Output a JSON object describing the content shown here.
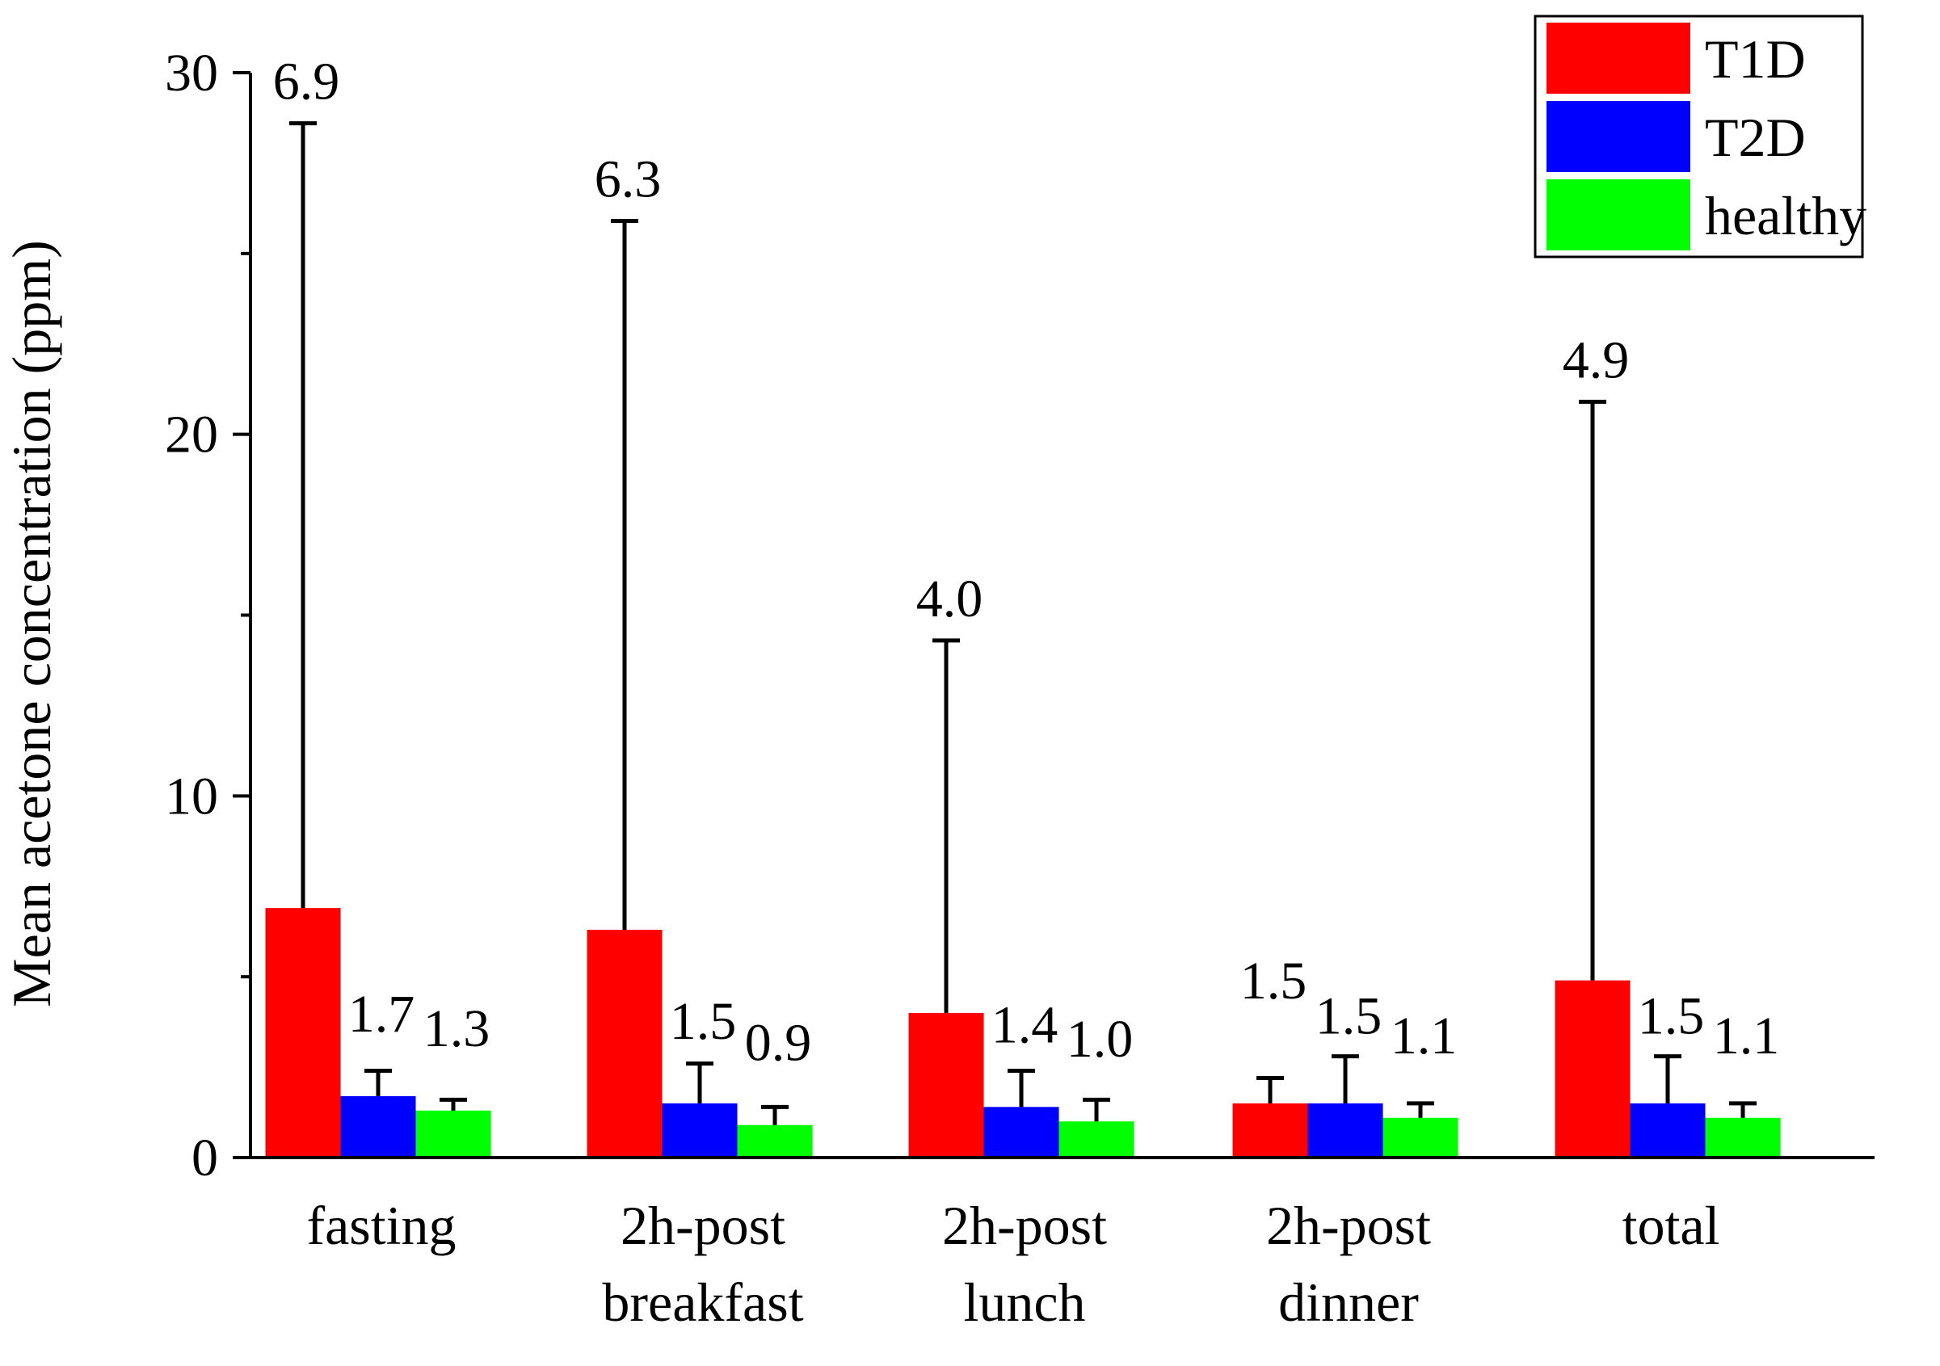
{
  "chart_data": {
    "type": "bar",
    "title": "",
    "xlabel": "",
    "ylabel": "Mean acetone concentration (ppm)",
    "ylim": [
      0,
      30
    ],
    "yticks": [
      0,
      10,
      20,
      30
    ],
    "grid": false,
    "legend_position": "top-right",
    "categories": [
      [
        "fasting"
      ],
      [
        "2h-post",
        "breakfast"
      ],
      [
        "2h-post",
        "lunch"
      ],
      [
        "2h-post",
        "dinner"
      ],
      [
        "total"
      ]
    ],
    "series": [
      {
        "name": "T1D",
        "color": "#ff0000",
        "values": [
          6.9,
          6.3,
          4.0,
          1.5,
          4.9
        ],
        "errors": [
          21.7,
          19.6,
          10.3,
          0.7,
          16.0
        ],
        "labels": [
          "6.9",
          "6.3",
          "4.0",
          "1.5",
          "4.9"
        ]
      },
      {
        "name": "T2D",
        "color": "#0000ff",
        "values": [
          1.7,
          1.5,
          1.4,
          1.5,
          1.5
        ],
        "errors": [
          0.7,
          1.1,
          1.0,
          1.3,
          1.3
        ],
        "labels": [
          "1.7",
          "1.5",
          "1.4",
          "1.5",
          "1.5"
        ]
      },
      {
        "name": "healthy",
        "color": "#00ff00",
        "values": [
          1.3,
          0.9,
          1.0,
          1.1,
          1.1
        ],
        "errors": [
          0.3,
          0.5,
          0.6,
          0.4,
          0.4
        ],
        "labels": [
          "1.3",
          "0.9",
          "1.0",
          "1.1",
          "1.1"
        ]
      }
    ]
  }
}
